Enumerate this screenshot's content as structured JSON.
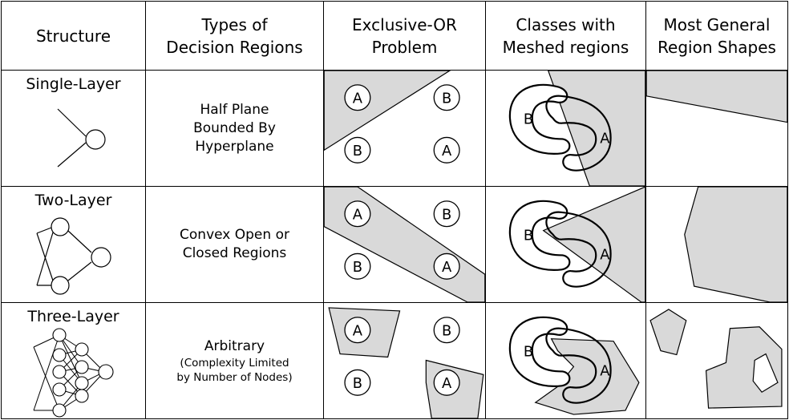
{
  "headers": {
    "structure": [
      "Structure"
    ],
    "types": [
      "Types of",
      "Decision Regions"
    ],
    "xor": [
      "Exclusive-OR",
      "Problem"
    ],
    "meshed": [
      "Classes with",
      "Meshed regions"
    ],
    "general": [
      "Most General",
      "Region Shapes"
    ]
  },
  "rows": [
    {
      "structure": "Single-Layer",
      "type_lines": [
        "Half Plane",
        "Bounded By",
        "Hyperplane"
      ],
      "type_sub": []
    },
    {
      "structure": "Two-Layer",
      "type_lines": [
        "Convex Open or",
        "Closed Regions"
      ],
      "type_sub": []
    },
    {
      "structure": "Three-Layer",
      "type_lines": [
        "Arbitrary"
      ],
      "type_sub": [
        "(Complexity Limited",
        "by Number of Nodes)"
      ]
    }
  ],
  "class_labels": {
    "a": "A",
    "b": "B"
  },
  "colors": {
    "shade": "#d9d9d9",
    "line": "#000000",
    "background": "#ffffff"
  }
}
